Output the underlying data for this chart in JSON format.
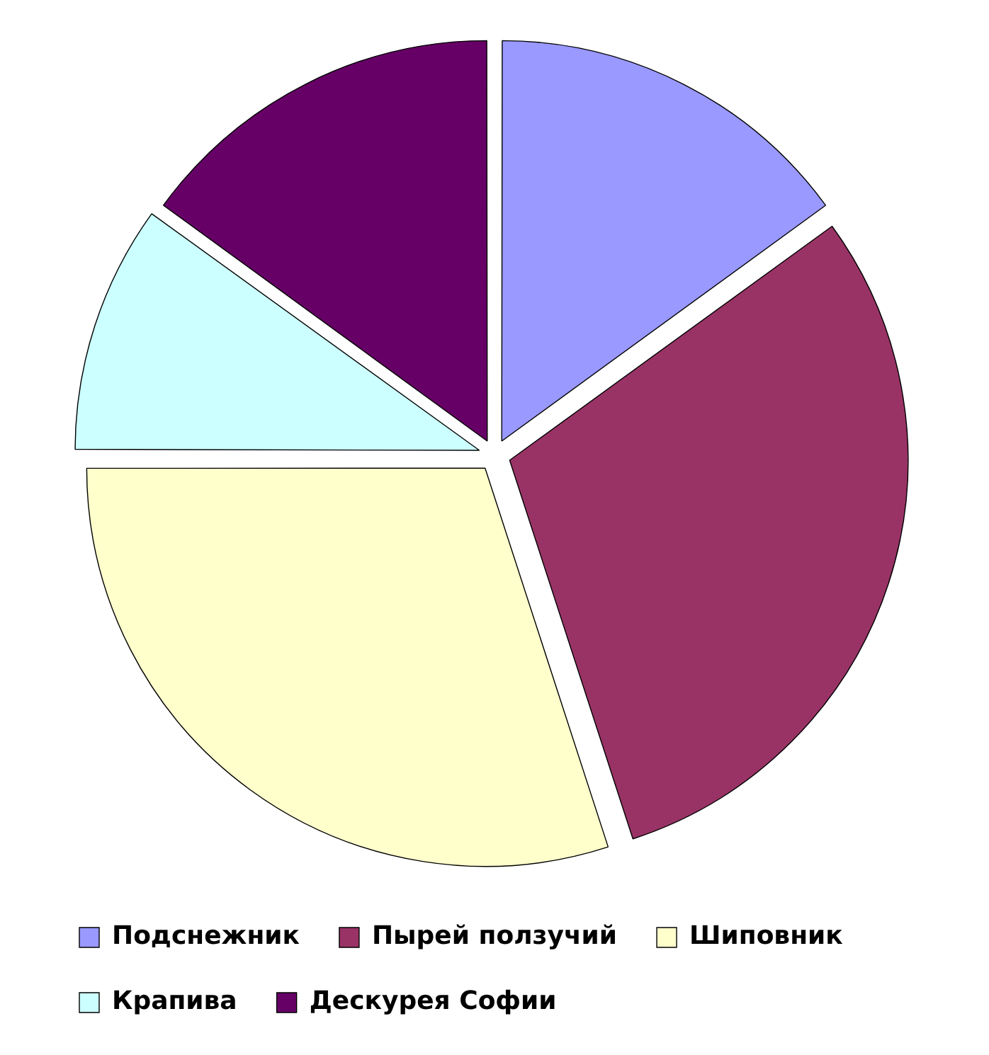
{
  "chart_data": {
    "type": "pie",
    "categories": [
      "Подснежник",
      "Пырей ползучий",
      "Шиповник",
      "Крапива",
      "Дескурея Софии"
    ],
    "values": [
      15,
      30,
      30,
      10,
      15
    ],
    "colors": [
      "#9999ff",
      "#993366",
      "#ffffcc",
      "#ccffff",
      "#660066"
    ],
    "legend": "bottom"
  }
}
